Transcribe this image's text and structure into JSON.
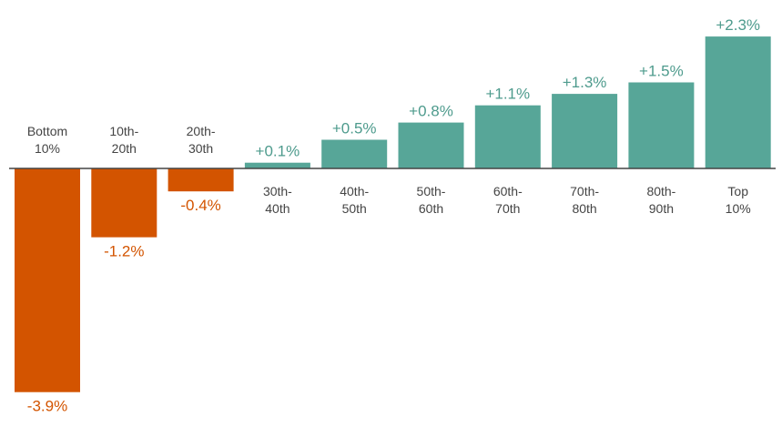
{
  "chart_data": {
    "type": "bar",
    "title": "",
    "xlabel": "",
    "ylabel": "",
    "categories": [
      [
        "Bottom",
        "10%"
      ],
      [
        "10th-",
        "20th"
      ],
      [
        "20th-",
        "30th"
      ],
      [
        "30th-",
        "40th"
      ],
      [
        "40th-",
        "50th"
      ],
      [
        "50th-",
        "60th"
      ],
      [
        "60th-",
        "70th"
      ],
      [
        "70th-",
        "80th"
      ],
      [
        "80th-",
        "90th"
      ],
      [
        "Top",
        "10%"
      ]
    ],
    "values": [
      -3.9,
      -1.2,
      -0.4,
      0.1,
      0.5,
      0.8,
      1.1,
      1.3,
      1.5,
      2.3
    ],
    "value_labels": [
      "-3.9%",
      "-1.2%",
      "-0.4%",
      "+0.1%",
      "+0.5%",
      "+0.8%",
      "+1.1%",
      "+1.3%",
      "+1.5%",
      "+2.3%"
    ],
    "ylim": [
      -3.9,
      2.3
    ],
    "grid": false,
    "legend": "none",
    "colors": {
      "positive": "#57a698",
      "negative": "#d35400",
      "positive_text": "#4e9b8d",
      "negative_text": "#d35400",
      "axis": "#444444",
      "category_text": "#444444"
    }
  }
}
